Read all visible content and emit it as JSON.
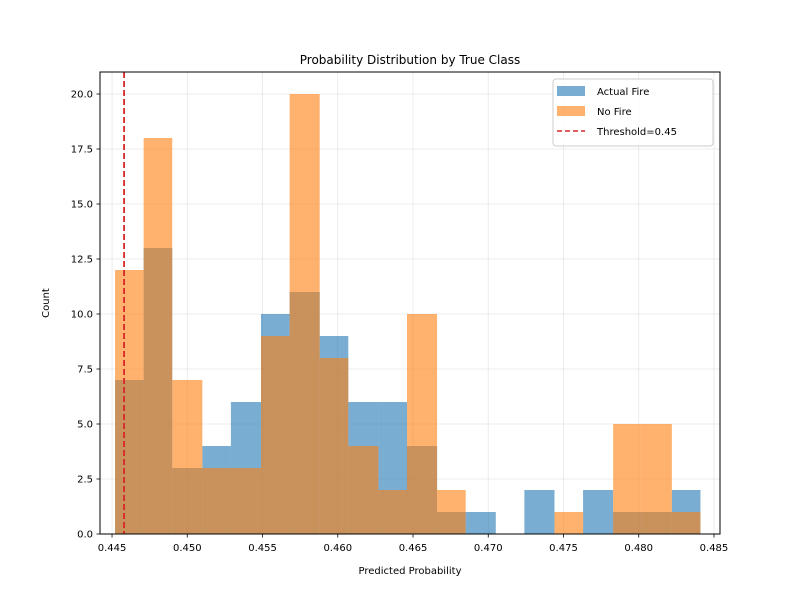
{
  "chart_data": {
    "type": "bar",
    "title": "Probability Distribution by True Class",
    "xlabel": "Predicted Probability",
    "ylabel": "Count",
    "xlim": [
      0.4442,
      0.4854
    ],
    "ylim": [
      0,
      21
    ],
    "xticks": [
      "0.445",
      "0.450",
      "0.455",
      "0.460",
      "0.465",
      "0.470",
      "0.475",
      "0.480",
      "0.485"
    ],
    "xtick_values": [
      0.445,
      0.45,
      0.455,
      0.46,
      0.465,
      0.47,
      0.475,
      0.48,
      0.485
    ],
    "yticks": [
      "0.0",
      "2.5",
      "5.0",
      "7.5",
      "10.0",
      "12.5",
      "15.0",
      "17.5",
      "20.0"
    ],
    "ytick_values": [
      0,
      2.5,
      5,
      7.5,
      10,
      12.5,
      15,
      17.5,
      20
    ],
    "grid": true,
    "legend_position": "top-right",
    "bin_edges": [
      0.4452,
      0.4471,
      0.449,
      0.451,
      0.4529,
      0.4549,
      0.4568,
      0.4588,
      0.4607,
      0.4627,
      0.4646,
      0.4666,
      0.4685,
      0.4705,
      0.4724,
      0.4744,
      0.4763,
      0.4783,
      0.4802,
      0.4822,
      0.4841
    ],
    "series": [
      {
        "name": "Actual Fire",
        "color": "#1f77b4",
        "values": [
          7,
          13,
          3,
          4,
          6,
          10,
          11,
          9,
          6,
          6,
          4,
          1,
          1,
          0,
          2,
          0,
          2,
          1,
          1,
          2
        ]
      },
      {
        "name": "No Fire",
        "color": "#ff7f0e",
        "values": [
          12,
          18,
          7,
          3,
          3,
          9,
          20,
          8,
          4,
          2,
          10,
          2,
          0,
          0,
          0,
          1,
          0,
          5,
          5,
          1
        ]
      }
    ],
    "threshold": {
      "label": "Threshold=0.45",
      "value": 0.4458,
      "color": "#d62728"
    }
  }
}
